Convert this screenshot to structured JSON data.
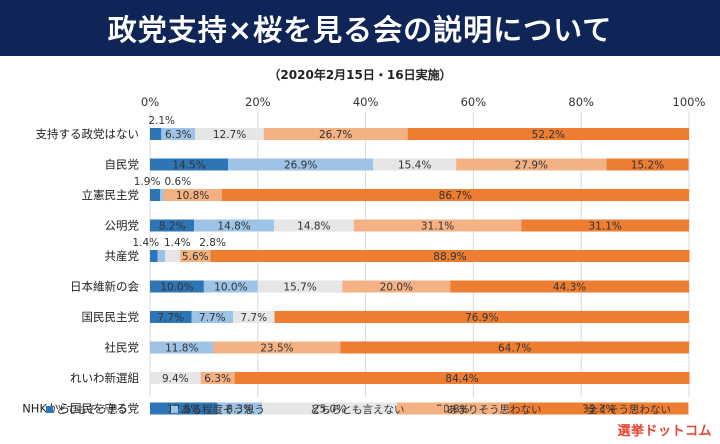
{
  "banner": {
    "title": "政党支持×桜を見る会の説明について"
  },
  "subtitle": "（2020年2月15日・16日実施）",
  "logo": {
    "text": "選挙ドットコム"
  },
  "chart_data": {
    "type": "bar",
    "orientation": "horizontal",
    "stacked": true,
    "xlim": [
      0,
      100
    ],
    "x_ticks": [
      "0%",
      "20%",
      "40%",
      "60%",
      "80%",
      "100%"
    ],
    "grid": true,
    "legend_position": "bottom",
    "categories": [
      "支持する政党はない",
      "自民党",
      "立憲民主党",
      "公明党",
      "共産党",
      "日本維新の会",
      "国民民主党",
      "社民党",
      "れいわ新選組",
      "NHKから国民を守る党"
    ],
    "series": [
      {
        "name": "とてもそう思う",
        "color": "#2e75b6",
        "values": [
          2.1,
          14.5,
          1.9,
          8.2,
          1.4,
          10.0,
          7.7,
          0,
          0,
          12.5
        ]
      },
      {
        "name": "ある程度そう思う",
        "color": "#9dc3e6",
        "values": [
          6.3,
          26.9,
          0.6,
          14.8,
          1.4,
          10.0,
          7.7,
          11.8,
          0,
          8.3
        ]
      },
      {
        "name": "どちらとも言えない",
        "color": "#e7e6e6",
        "values": [
          12.7,
          15.4,
          0,
          14.8,
          2.8,
          15.7,
          7.7,
          0,
          9.4,
          25.0
        ]
      },
      {
        "name": "あまりそう思わない",
        "color": "#f4b183",
        "values": [
          26.7,
          27.9,
          10.8,
          31.1,
          5.6,
          20.0,
          0,
          23.5,
          6.3,
          20.8
        ]
      },
      {
        "name": "全くそう思わない",
        "color": "#ed7d31",
        "values": [
          52.2,
          15.2,
          86.7,
          31.1,
          88.9,
          44.3,
          76.9,
          64.7,
          84.4,
          33.3
        ]
      }
    ],
    "labels": [
      [
        "2.1%",
        "6.3%",
        "12.7%",
        "26.7%",
        "52.2%"
      ],
      [
        "14.5%",
        "26.9%",
        "15.4%",
        "27.9%",
        "15.2%"
      ],
      [
        "1.9%",
        "0.6%",
        "",
        "10.8%",
        "86.7%"
      ],
      [
        "8.2%",
        "14.8%",
        "14.8%",
        "31.1%",
        "31.1%"
      ],
      [
        "1.4%",
        "1.4%",
        "2.8%",
        "5.6%",
        "88.9%"
      ],
      [
        "10.0%",
        "10.0%",
        "15.7%",
        "20.0%",
        "44.3%"
      ],
      [
        "7.7%",
        "7.7%",
        "7.7%",
        "",
        "76.9%"
      ],
      [
        "",
        "11.8%",
        "",
        "23.5%",
        "64.7%"
      ],
      [
        "",
        "",
        "9.4%",
        "6.3%",
        "84.4%"
      ],
      [
        "12.5%",
        "8.3%",
        "25.0%",
        "20.8%",
        "33.3%"
      ]
    ]
  }
}
